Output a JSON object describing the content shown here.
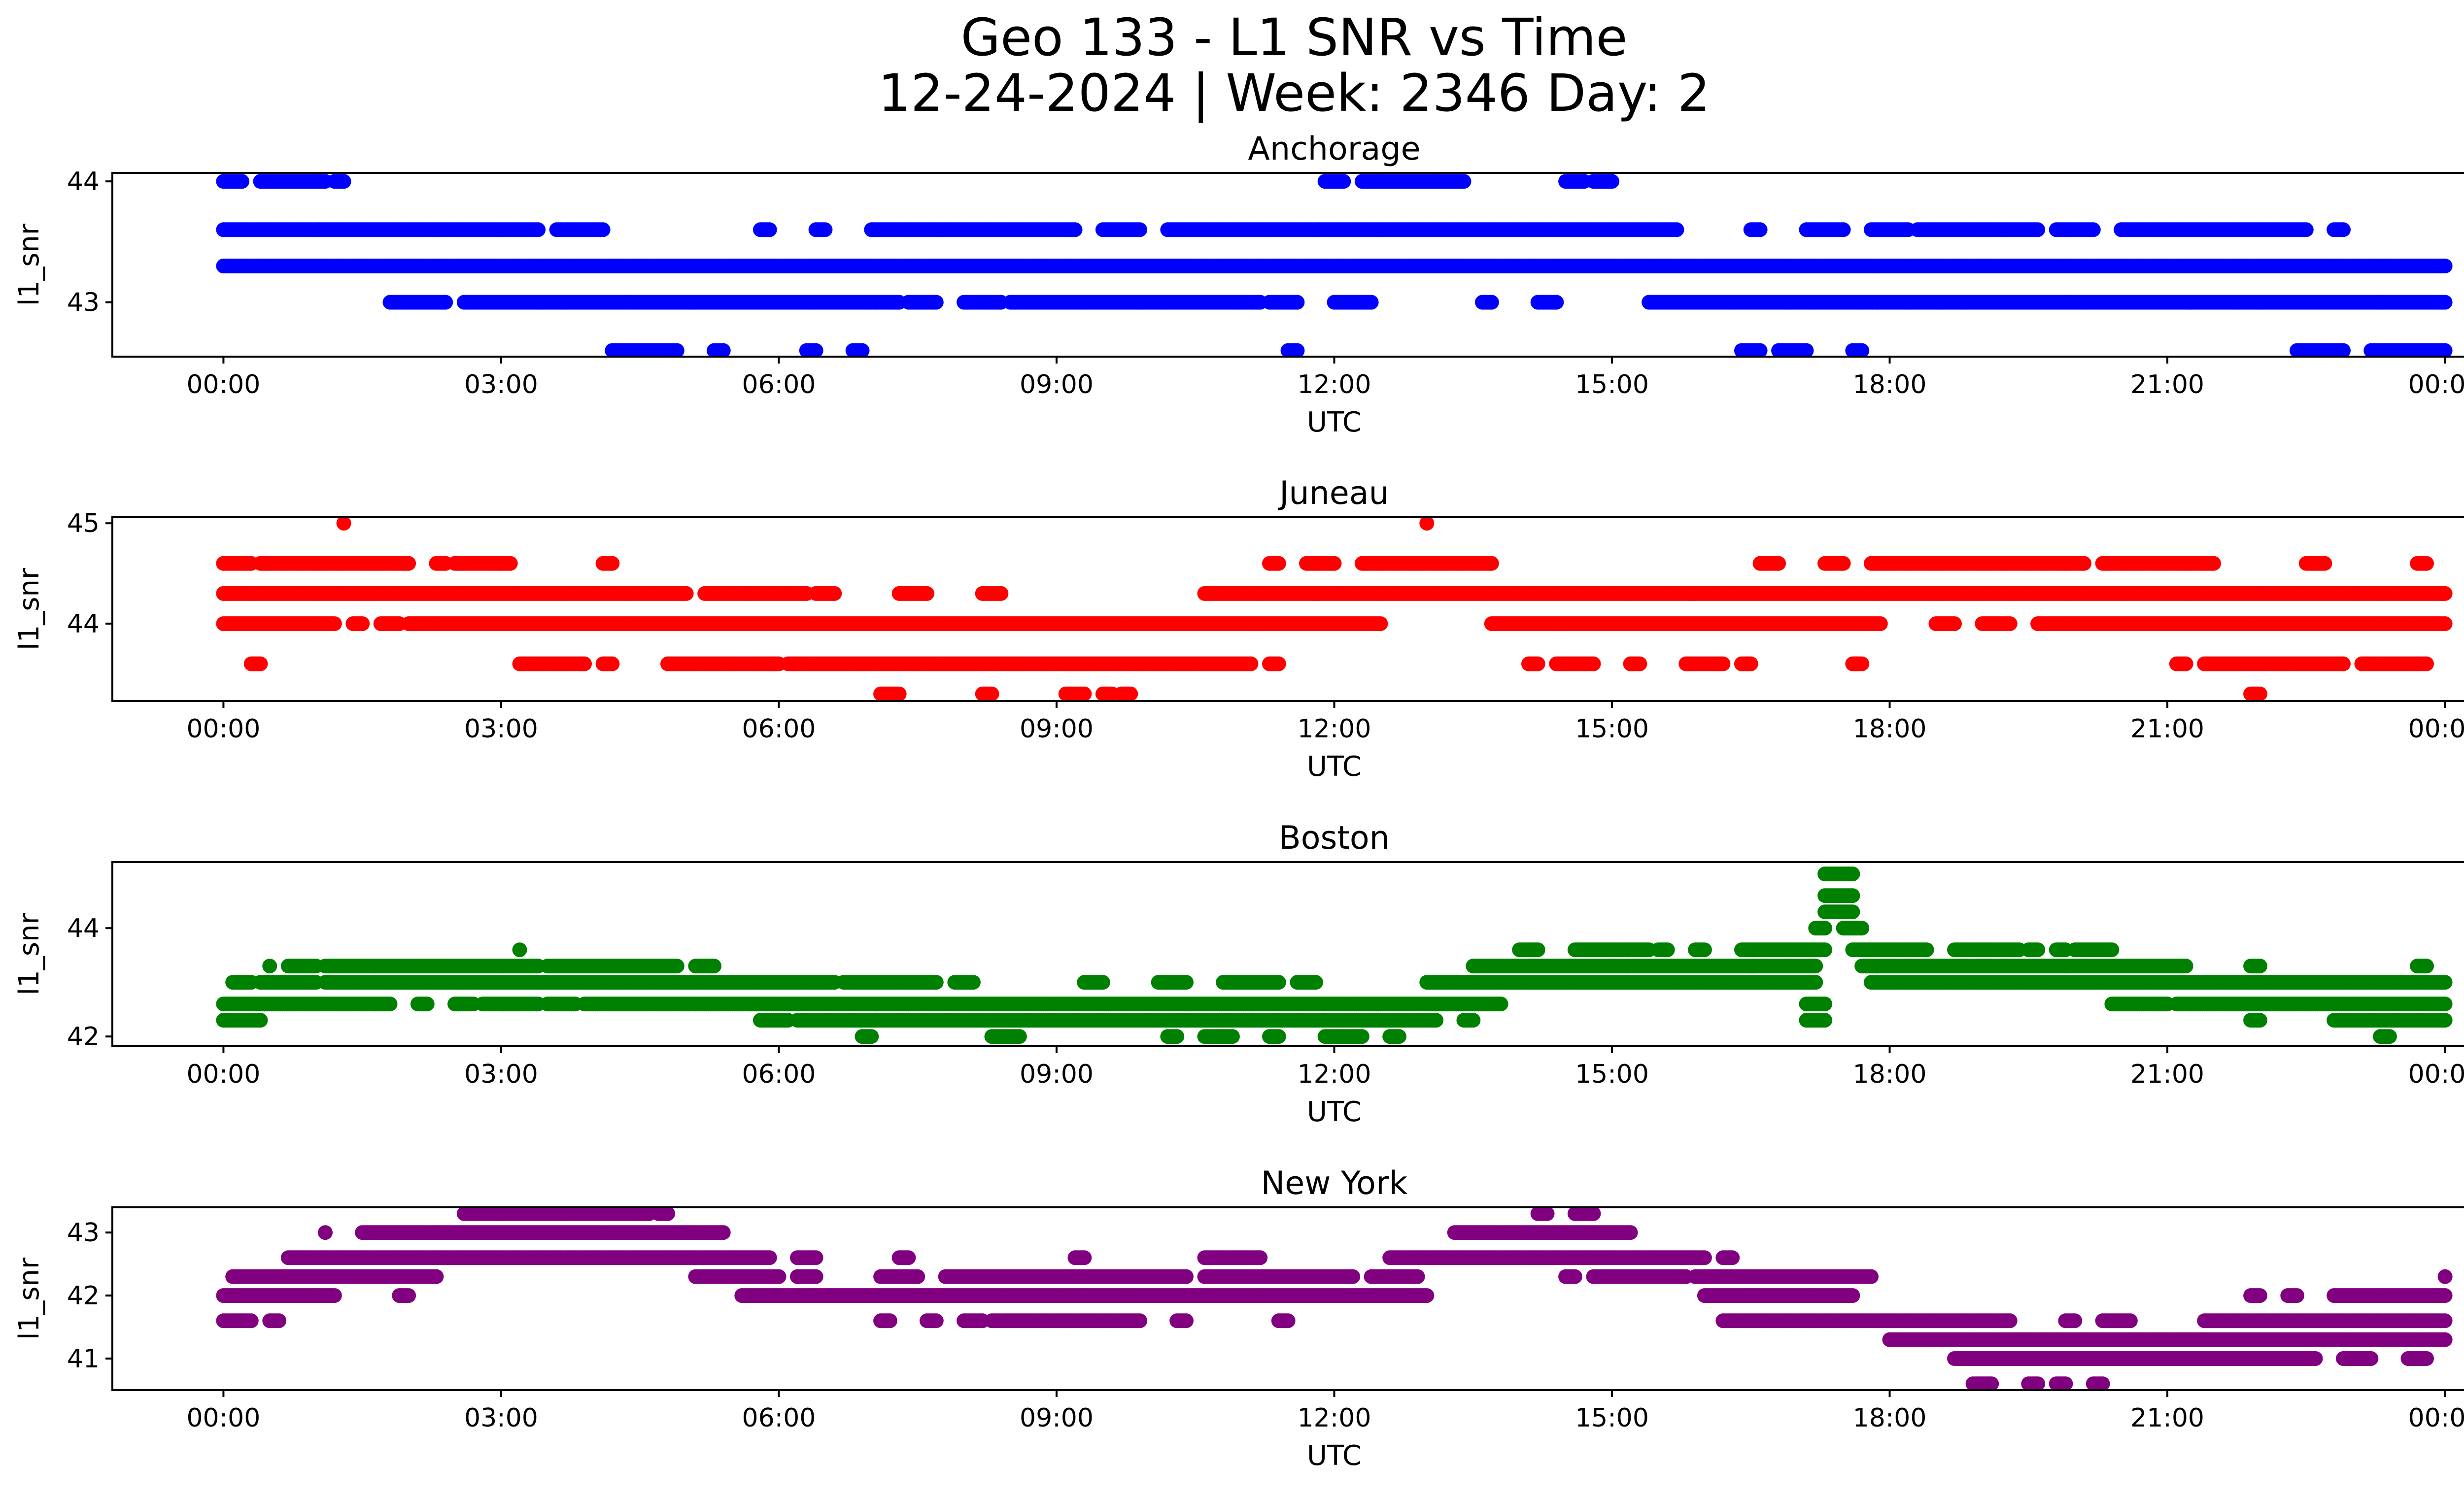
{
  "figure": {
    "title_line1": "Geo 133 - L1 SNR vs Time",
    "title_line2": "12-24-2024 | Week: 2346 Day: 2"
  },
  "chart_data": [
    {
      "type": "scatter",
      "title": "Anchorage",
      "xlabel": "UTC",
      "ylabel": "l1_snr",
      "color": "#0000ff",
      "xlim": [
        -1.2,
        25.2
      ],
      "ylim": [
        42.55,
        44.07
      ],
      "yticks": [
        43,
        44
      ],
      "xtick_labels": [
        "00:00",
        "03:00",
        "06:00",
        "09:00",
        "12:00",
        "15:00",
        "18:00",
        "21:00",
        "00:00"
      ],
      "xtick_hours": [
        0,
        3,
        6,
        9,
        12,
        15,
        18,
        21,
        24
      ],
      "levels": [
        {
          "y": 43.3,
          "ranges": [
            [
              0,
              24
            ]
          ]
        },
        {
          "y": 43.6,
          "ranges": [
            [
              0,
              3.4
            ],
            [
              3.6,
              4.1
            ],
            [
              5.8,
              5.9
            ],
            [
              6.4,
              6.5
            ],
            [
              7,
              9.2
            ],
            [
              9.5,
              9.9
            ],
            [
              10.2,
              15.7
            ],
            [
              16.5,
              16.6
            ],
            [
              17.1,
              17.5
            ],
            [
              17.8,
              18.2
            ],
            [
              18.3,
              19.6
            ],
            [
              19.8,
              20.2
            ],
            [
              20.5,
              22.5
            ],
            [
              22.8,
              22.9
            ]
          ]
        },
        {
          "y": 43.0,
          "ranges": [
            [
              1.8,
              2.4
            ],
            [
              2.6,
              7.3
            ],
            [
              7.4,
              7.7
            ],
            [
              8,
              8.4
            ],
            [
              8.5,
              11.2
            ],
            [
              11.3,
              11.6
            ],
            [
              12,
              12.4
            ],
            [
              13.6,
              13.7
            ],
            [
              14.2,
              14.4
            ],
            [
              15.4,
              24
            ]
          ]
        },
        {
          "y": 44.0,
          "ranges": [
            [
              0,
              0.2
            ],
            [
              0.4,
              1.1
            ],
            [
              1.2,
              1.3
            ],
            [
              11.9,
              12.1
            ],
            [
              12.3,
              13.4
            ],
            [
              14.5,
              14.7
            ],
            [
              14.8,
              15
            ]
          ]
        },
        {
          "y": 42.6,
          "ranges": [
            [
              4.2,
              4.9
            ],
            [
              5.3,
              5.4
            ],
            [
              6.3,
              6.4
            ],
            [
              6.8,
              6.9
            ],
            [
              11.5,
              11.6
            ],
            [
              16.4,
              16.6
            ],
            [
              16.8,
              17.1
            ],
            [
              17.6,
              17.7
            ],
            [
              22.4,
              22.9
            ],
            [
              23.2,
              24
            ]
          ]
        }
      ]
    },
    {
      "type": "scatter",
      "title": "Juneau",
      "xlabel": "UTC",
      "ylabel": "l1_snr",
      "color": "#ff0000",
      "xlim": [
        -1.2,
        25.2
      ],
      "ylim": [
        43.23,
        45.06
      ],
      "yticks": [
        44,
        45
      ],
      "xtick_labels": [
        "00:00",
        "03:00",
        "06:00",
        "09:00",
        "12:00",
        "15:00",
        "18:00",
        "21:00",
        "00:00"
      ],
      "xtick_hours": [
        0,
        3,
        6,
        9,
        12,
        15,
        18,
        21,
        24
      ],
      "levels": [
        {
          "y": 44.3,
          "ranges": [
            [
              0,
              5
            ],
            [
              5.2,
              6.3
            ],
            [
              6.4,
              6.6
            ],
            [
              7.3,
              7.6
            ],
            [
              8.2,
              8.4
            ],
            [
              10.6,
              24
            ]
          ]
        },
        {
          "y": 44.0,
          "ranges": [
            [
              0,
              1.2
            ],
            [
              1.4,
              1.5
            ],
            [
              1.7,
              1.9
            ],
            [
              2,
              12.5
            ],
            [
              13.7,
              17.9
            ],
            [
              18.5,
              18.7
            ],
            [
              19,
              19.3
            ],
            [
              19.6,
              24
            ]
          ]
        },
        {
          "y": 44.6,
          "ranges": [
            [
              0,
              0.3
            ],
            [
              0.4,
              2
            ],
            [
              2.3,
              2.4
            ],
            [
              2.5,
              3.1
            ],
            [
              4.1,
              4.2
            ],
            [
              11.3,
              11.4
            ],
            [
              11.7,
              12
            ],
            [
              12.3,
              13.7
            ],
            [
              16.6,
              16.8
            ],
            [
              17.3,
              17.5
            ],
            [
              17.8,
              20.1
            ],
            [
              20.3,
              21.5
            ],
            [
              22.5,
              22.7
            ],
            [
              23.7,
              23.8
            ]
          ]
        },
        {
          "y": 43.6,
          "ranges": [
            [
              0.3,
              0.4
            ],
            [
              3.2,
              3.9
            ],
            [
              4.1,
              4.2
            ],
            [
              4.8,
              6
            ],
            [
              6.1,
              11.1
            ],
            [
              11.3,
              11.4
            ],
            [
              14.1,
              14.2
            ],
            [
              14.4,
              14.8
            ],
            [
              15.2,
              15.3
            ],
            [
              15.8,
              16.2
            ],
            [
              16.4,
              16.5
            ],
            [
              17.6,
              17.7
            ],
            [
              21.1,
              21.2
            ],
            [
              21.4,
              22.9
            ],
            [
              23.1,
              23.8
            ]
          ]
        },
        {
          "y": 43.3,
          "ranges": [
            [
              7.1,
              7.3
            ],
            [
              8.2,
              8.3
            ],
            [
              9.1,
              9.3
            ],
            [
              9.5,
              9.6
            ],
            [
              9.7,
              9.8
            ],
            [
              21.9,
              22
            ]
          ]
        },
        {
          "y": 45.0,
          "ranges": [
            [
              1.3,
              1.3
            ],
            [
              13,
              13
            ]
          ]
        }
      ]
    },
    {
      "type": "scatter",
      "title": "Boston",
      "xlabel": "UTC",
      "ylabel": "l1_snr",
      "color": "#008000",
      "xlim": [
        -1.2,
        25.2
      ],
      "ylim": [
        41.82,
        45.22
      ],
      "yticks": [
        42,
        44
      ],
      "xtick_labels": [
        "00:00",
        "03:00",
        "06:00",
        "09:00",
        "12:00",
        "15:00",
        "18:00",
        "21:00",
        "00:00"
      ],
      "xtick_hours": [
        0,
        3,
        6,
        9,
        12,
        15,
        18,
        21,
        24
      ],
      "levels": [
        {
          "y": 42.6,
          "ranges": [
            [
              0,
              1.8
            ],
            [
              2.1,
              2.2
            ],
            [
              2.5,
              2.7
            ],
            [
              2.8,
              3.4
            ],
            [
              3.5,
              3.8
            ],
            [
              3.9,
              13.8
            ],
            [
              17.1,
              17.3
            ],
            [
              20.4,
              21
            ],
            [
              21.1,
              24
            ]
          ]
        },
        {
          "y": 42.3,
          "ranges": [
            [
              0,
              0.4
            ],
            [
              5.8,
              6.1
            ],
            [
              6.2,
              13.1
            ],
            [
              13.4,
              13.5
            ],
            [
              17.1,
              17.3
            ],
            [
              21.9,
              22
            ],
            [
              22.8,
              24
            ]
          ]
        },
        {
          "y": 42.0,
          "ranges": [
            [
              6.9,
              7
            ],
            [
              8.3,
              8.6
            ],
            [
              10.2,
              10.3
            ],
            [
              10.6,
              10.9
            ],
            [
              11.3,
              11.4
            ],
            [
              11.9,
              12.3
            ],
            [
              12.6,
              12.7
            ],
            [
              23.3,
              23.4
            ]
          ]
        },
        {
          "y": 43.0,
          "ranges": [
            [
              0.1,
              0.3
            ],
            [
              0.4,
              1
            ],
            [
              1.1,
              6.6
            ],
            [
              6.7,
              7.7
            ],
            [
              7.9,
              8.1
            ],
            [
              9.3,
              9.5
            ],
            [
              10.1,
              10.4
            ],
            [
              10.8,
              11.4
            ],
            [
              11.6,
              11.8
            ],
            [
              13,
              17.2
            ],
            [
              17.8,
              24
            ]
          ]
        },
        {
          "y": 43.3,
          "ranges": [
            [
              0.5,
              0.5
            ],
            [
              0.7,
              1
            ],
            [
              1.1,
              3.4
            ],
            [
              3.5,
              4.9
            ],
            [
              5.1,
              5.3
            ],
            [
              13.5,
              17.2
            ],
            [
              17.7,
              21.2
            ],
            [
              21.9,
              22
            ],
            [
              23.7,
              23.8
            ]
          ]
        },
        {
          "y": 43.6,
          "ranges": [
            [
              3.2,
              3.2
            ],
            [
              14,
              14.2
            ],
            [
              14.6,
              15.4
            ],
            [
              15.5,
              15.6
            ],
            [
              15.9,
              16
            ],
            [
              16.4,
              17.3
            ],
            [
              17.6,
              18.4
            ],
            [
              18.7,
              19.4
            ],
            [
              19.5,
              19.6
            ],
            [
              19.8,
              19.9
            ],
            [
              20,
              20.4
            ]
          ]
        },
        {
          "y": 44.0,
          "ranges": [
            [
              17.2,
              17.3
            ],
            [
              17.5,
              17.7
            ]
          ]
        },
        {
          "y": 44.3,
          "ranges": [
            [
              17.3,
              17.6
            ]
          ]
        },
        {
          "y": 44.6,
          "ranges": [
            [
              17.3,
              17.6
            ]
          ]
        },
        {
          "y": 45.0,
          "ranges": [
            [
              17.3,
              17.6
            ]
          ]
        }
      ]
    },
    {
      "type": "scatter",
      "title": "New York",
      "xlabel": "UTC",
      "ylabel": "l1_snr",
      "color": "#800080",
      "xlim": [
        -1.2,
        25.2
      ],
      "ylim": [
        40.5,
        43.4
      ],
      "yticks": [
        41,
        42,
        43
      ],
      "xtick_labels": [
        "00:00",
        "03:00",
        "06:00",
        "09:00",
        "12:00",
        "15:00",
        "18:00",
        "21:00",
        "00:00"
      ],
      "xtick_hours": [
        0,
        3,
        6,
        9,
        12,
        15,
        18,
        21,
        24
      ],
      "levels": [
        {
          "y": 41.6,
          "ranges": [
            [
              0,
              0.3
            ],
            [
              0.5,
              0.6
            ],
            [
              7.1,
              7.2
            ],
            [
              7.6,
              7.7
            ],
            [
              8,
              8.2
            ],
            [
              8.3,
              9.9
            ],
            [
              10.3,
              10.4
            ],
            [
              11.4,
              11.5
            ],
            [
              16.2,
              19.3
            ],
            [
              19.9,
              20
            ],
            [
              20.3,
              20.6
            ],
            [
              21.4,
              24
            ]
          ]
        },
        {
          "y": 42.0,
          "ranges": [
            [
              0,
              1.2
            ],
            [
              1.9,
              2
            ],
            [
              5.6,
              13
            ],
            [
              16,
              17.6
            ],
            [
              21.9,
              22
            ],
            [
              22.3,
              22.4
            ],
            [
              22.8,
              24
            ]
          ]
        },
        {
          "y": 42.3,
          "ranges": [
            [
              0.1,
              2.3
            ],
            [
              5.1,
              6
            ],
            [
              6.2,
              6.4
            ],
            [
              7.1,
              7.5
            ],
            [
              7.8,
              10.4
            ],
            [
              10.6,
              12.2
            ],
            [
              12.4,
              12.9
            ],
            [
              14.5,
              14.6
            ],
            [
              14.8,
              15.8
            ],
            [
              15.9,
              17.8
            ],
            [
              24,
              24
            ]
          ]
        },
        {
          "y": 42.6,
          "ranges": [
            [
              0.7,
              5.9
            ],
            [
              6.2,
              6.4
            ],
            [
              7.3,
              7.4
            ],
            [
              9.2,
              9.3
            ],
            [
              10.6,
              11.2
            ],
            [
              12.6,
              16
            ],
            [
              16.2,
              16.3
            ]
          ]
        },
        {
          "y": 43.0,
          "ranges": [
            [
              1.1,
              1.1
            ],
            [
              1.5,
              5.4
            ],
            [
              13.3,
              15.2
            ]
          ]
        },
        {
          "y": 43.3,
          "ranges": [
            [
              2.6,
              4.6
            ],
            [
              4.7,
              4.8
            ],
            [
              14.2,
              14.3
            ],
            [
              14.6,
              14.8
            ]
          ]
        },
        {
          "y": 41.3,
          "ranges": [
            [
              18,
              24
            ]
          ]
        },
        {
          "y": 41.0,
          "ranges": [
            [
              18.7,
              22.6
            ],
            [
              22.9,
              23.2
            ],
            [
              23.6,
              23.8
            ]
          ]
        },
        {
          "y": 40.6,
          "ranges": [
            [
              18.9,
              19.1
            ],
            [
              19.5,
              19.6
            ],
            [
              19.8,
              19.9
            ],
            [
              20.2,
              20.3
            ]
          ]
        }
      ]
    }
  ]
}
